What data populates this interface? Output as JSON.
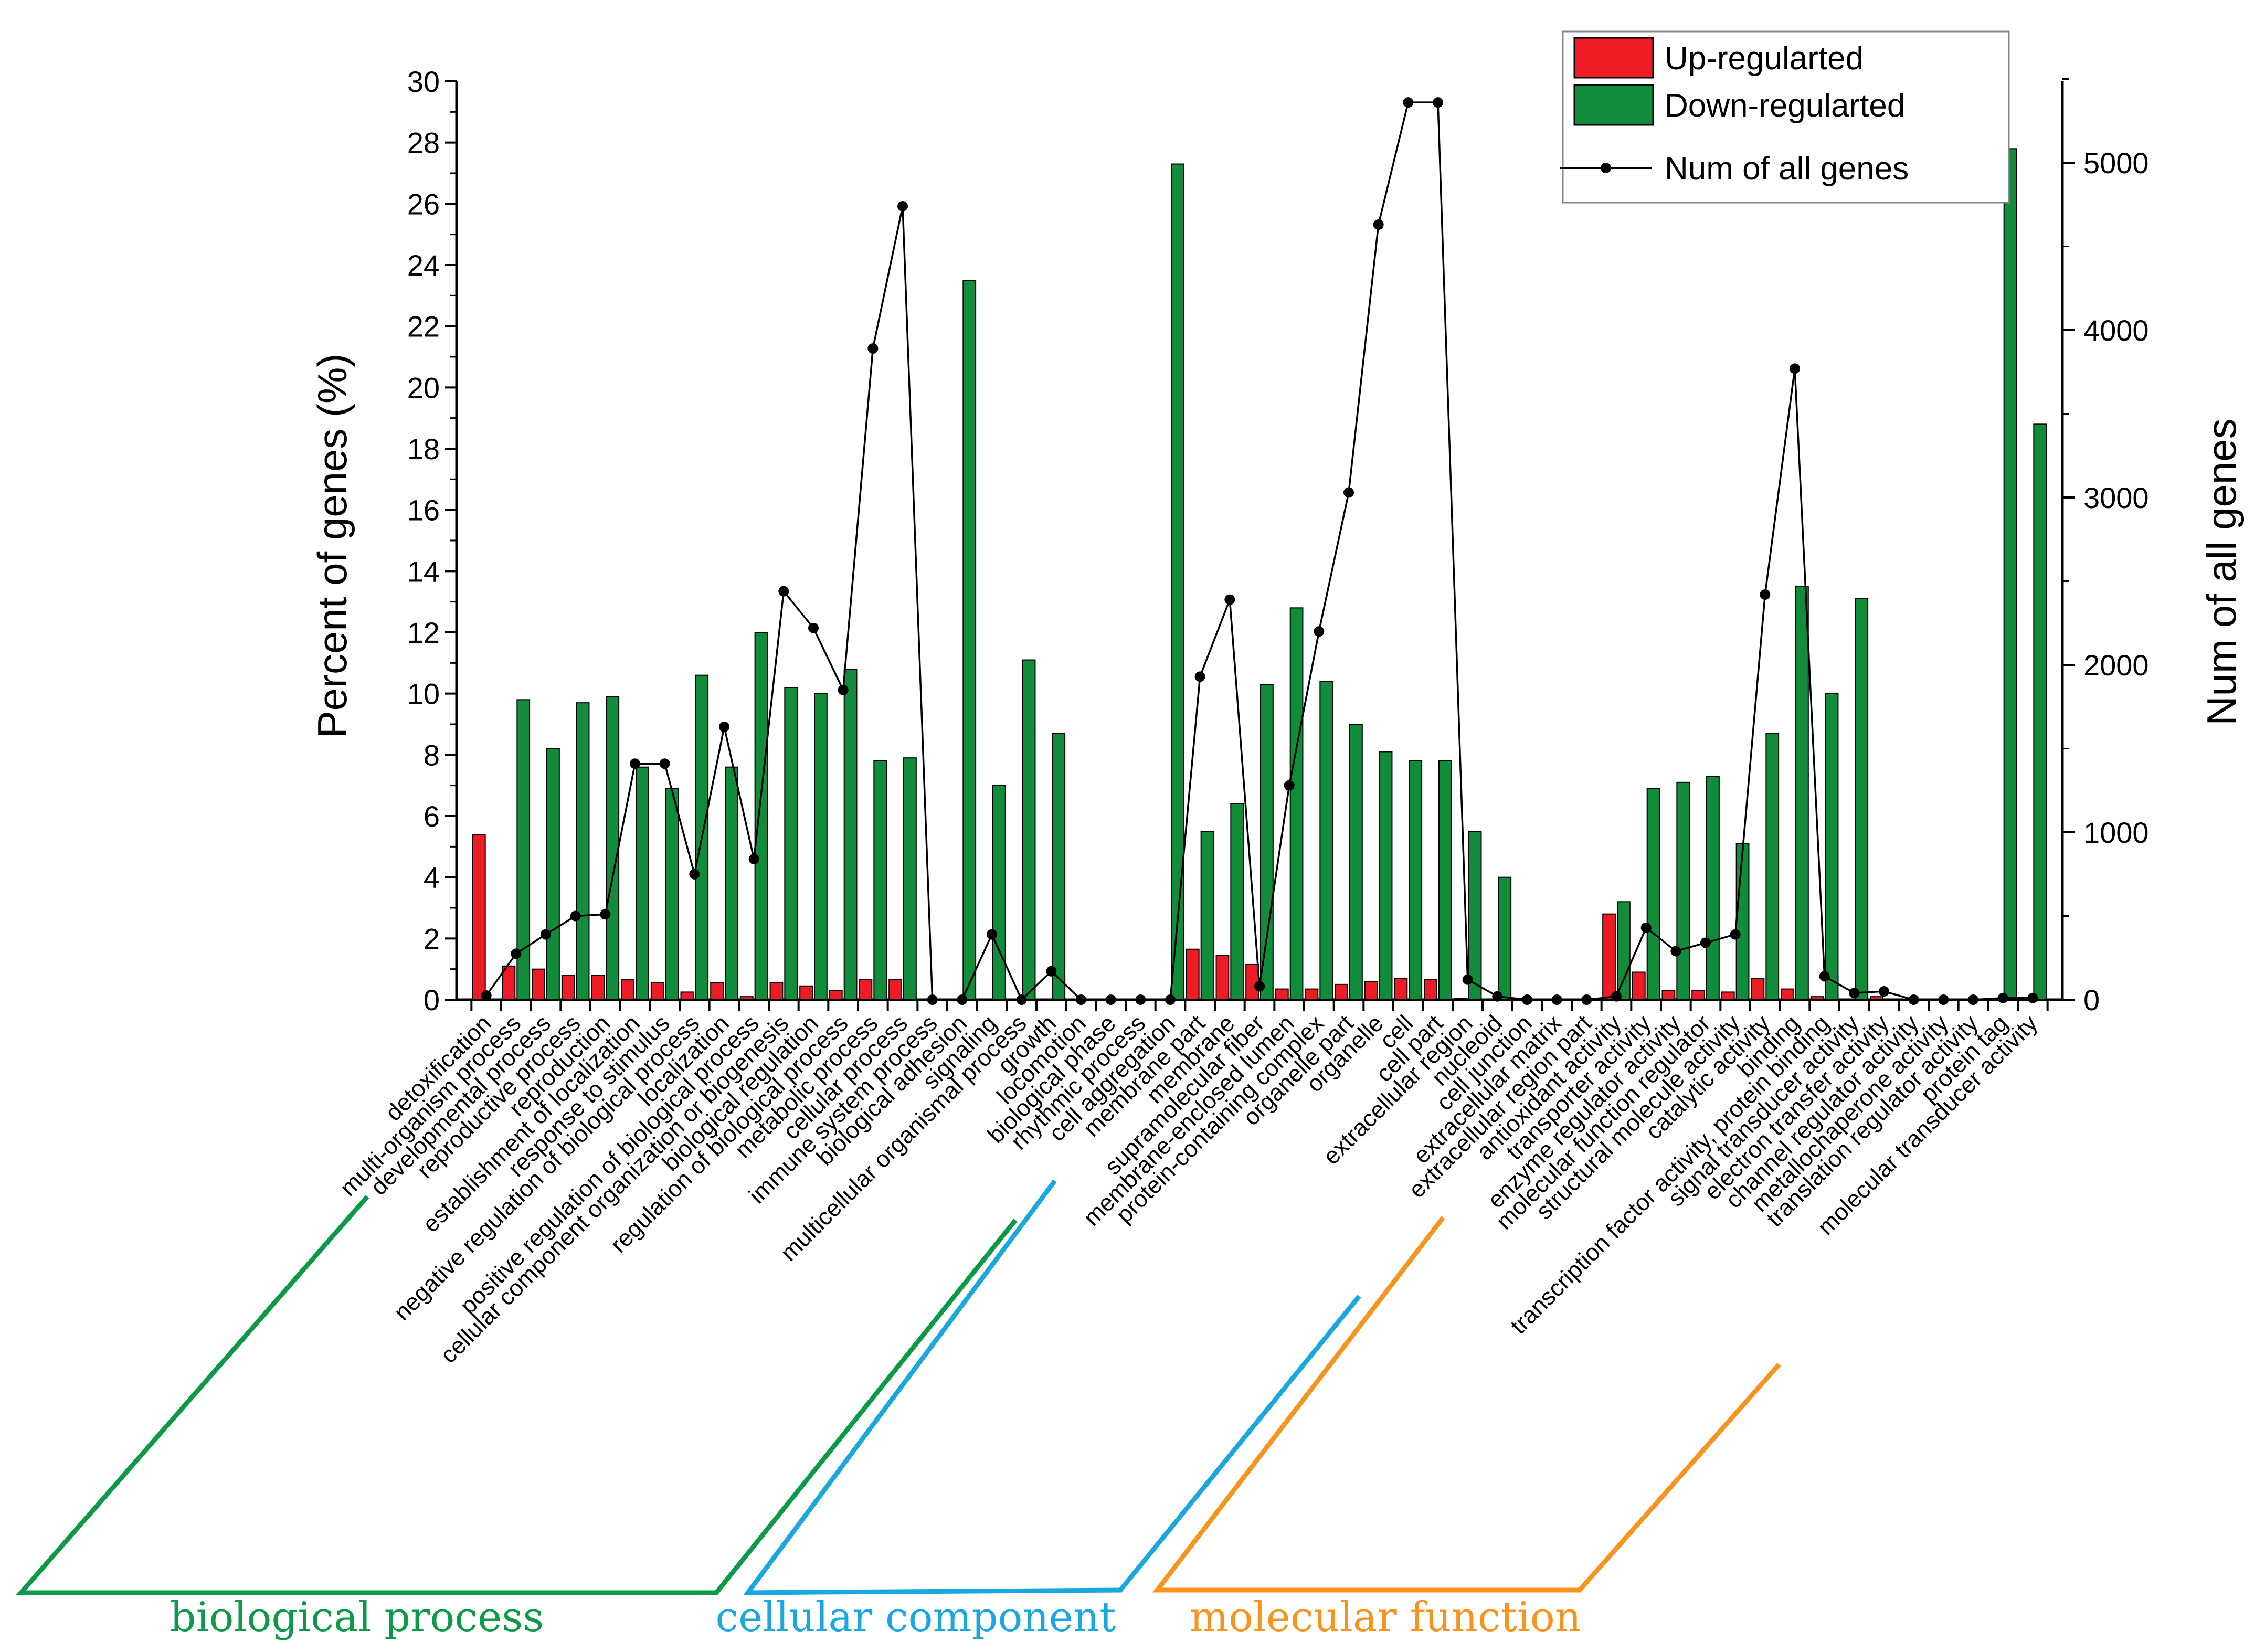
{
  "chart_data": {
    "type": "bar",
    "title": "",
    "xlabel": "",
    "ylabel": "Percent of genes (%)",
    "y2label": "Num of all genes",
    "ylim": [
      0,
      30
    ],
    "y2lim": [
      0,
      5500
    ],
    "yticks": [
      0,
      2,
      4,
      6,
      8,
      10,
      12,
      14,
      16,
      18,
      20,
      22,
      24,
      26,
      28,
      30
    ],
    "y2ticks": [
      0,
      1000,
      2000,
      3000,
      4000,
      5000
    ],
    "legend": {
      "position": "top-right"
    },
    "colors": {
      "up": "#ee1c25",
      "down": "#108c3a",
      "line": "#000000",
      "bp": "#0d9a48",
      "cc": "#19a7df",
      "mf": "#f7941d"
    },
    "categories": [
      "detoxification",
      "multi-organism process",
      "developmental process",
      "reproductive process",
      "reproduction",
      "establishment of localization",
      "response to stimulus",
      "negative regulation of biological process",
      "localization",
      "positive regulation of biological process",
      "cellular component organization or biogenesis",
      "biological regulation",
      "regulation of biological process",
      "metabolic process",
      "cellular process",
      "immune system process",
      "biological adhesion",
      "signaling",
      "multicellular organismal process",
      "growth",
      "locomotion",
      "biological phase",
      "rhythmic process",
      "cell aggregation",
      "membrane part",
      "membrane",
      "supramolecular fiber",
      "membrane-enclosed lumen",
      "protein-containing complex",
      "organelle part",
      "organelle",
      "cell",
      "cell part",
      "extracellular region",
      "nucleoid",
      "cell junction",
      "extracellular matrix",
      "extracellular region part",
      "antioxidant activity",
      "transporter activity",
      "enzyme regulator activity",
      "molecular function regulator",
      "structural molecule activity",
      "catalytic activity",
      "binding",
      "transcription factor activity, protein binding",
      "signal transducer activity",
      "electron transfer activity",
      "channel regulator activity",
      "metallochaperone activity",
      "translation regulator activity",
      "protein tag",
      "molecular transducer activity"
    ],
    "series": [
      {
        "name": "Up-regularted",
        "axis": "left",
        "values": [
          5.4,
          1.1,
          1.0,
          0.8,
          0.8,
          0.65,
          0.55,
          0.25,
          0.55,
          0.1,
          0.55,
          0.45,
          0.3,
          0.65,
          0.65,
          0,
          0,
          0,
          0,
          0,
          0,
          0,
          0,
          0,
          1.65,
          1.45,
          1.15,
          0.35,
          0.35,
          0.5,
          0.6,
          0.7,
          0.65,
          0.05,
          0,
          0,
          0,
          0,
          2.8,
          0.9,
          0.3,
          0.3,
          0.25,
          0.7,
          0.35,
          0.1,
          0,
          0.1,
          0,
          0,
          0,
          0.05,
          0
        ]
      },
      {
        "name": "Down-regularted",
        "axis": "left",
        "values": [
          0,
          9.8,
          8.2,
          9.7,
          9.9,
          7.6,
          6.9,
          10.6,
          7.6,
          12.0,
          10.2,
          10.0,
          10.8,
          7.8,
          7.9,
          0,
          23.5,
          7.0,
          11.1,
          8.7,
          0,
          0,
          0,
          27.3,
          5.5,
          6.4,
          10.3,
          12.8,
          10.4,
          9.0,
          8.1,
          7.8,
          7.8,
          5.5,
          4.0,
          0,
          0,
          0,
          3.2,
          6.9,
          7.1,
          7.3,
          5.1,
          8.7,
          13.5,
          10.0,
          13.1,
          0,
          0,
          0,
          0,
          27.8,
          18.8
        ]
      },
      {
        "name": "Num of all genes",
        "axis": "right",
        "type": "line",
        "values": [
          25,
          275,
          390,
          500,
          510,
          1410,
          1410,
          750,
          1630,
          840,
          2440,
          2220,
          1850,
          3890,
          4740,
          0,
          0,
          390,
          0,
          170,
          0,
          0,
          0,
          0,
          1930,
          2390,
          80,
          1280,
          2200,
          3030,
          4630,
          5360,
          5360,
          120,
          20,
          0,
          0,
          0,
          20,
          430,
          290,
          340,
          390,
          2420,
          3770,
          140,
          40,
          50,
          0,
          0,
          0,
          10,
          10
        ]
      }
    ],
    "groups": [
      {
        "label": "biological process",
        "color": "#0d9a48",
        "start": 0,
        "end": 22
      },
      {
        "label": "cellular component",
        "color": "#19a7df",
        "start": 23,
        "end": 37
      },
      {
        "label": "molecular function",
        "color": "#f7941d",
        "start": 38,
        "end": 52
      }
    ]
  }
}
